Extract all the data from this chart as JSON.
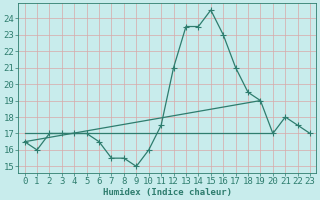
{
  "line1_x": [
    0,
    1,
    2,
    3,
    4,
    5,
    6,
    7,
    8,
    9,
    10,
    11,
    12,
    13,
    14,
    15,
    16,
    17,
    18,
    19,
    20,
    21,
    22,
    23
  ],
  "line1_y": [
    16.5,
    16.0,
    17.0,
    17.0,
    17.0,
    17.0,
    16.5,
    15.5,
    15.5,
    15.0,
    16.0,
    17.5,
    21.0,
    23.5,
    23.5,
    24.5,
    23.0,
    21.0,
    19.5,
    19.0,
    17.0,
    18.0,
    17.5,
    17.0
  ],
  "line2_x": [
    0,
    20
  ],
  "line2_y": [
    17.0,
    17.0
  ],
  "line3_x": [
    0,
    19
  ],
  "line3_y": [
    16.5,
    19.0
  ],
  "color": "#2e7d6e",
  "bg_color": "#c8ecec",
  "grid_color": "#b0d8d8",
  "xlabel": "Humidex (Indice chaleur)",
  "xlim": [
    -0.5,
    23.5
  ],
  "ylim": [
    14.6,
    24.9
  ],
  "yticks": [
    15,
    16,
    17,
    18,
    19,
    20,
    21,
    22,
    23,
    24
  ],
  "xticks": [
    0,
    1,
    2,
    3,
    4,
    5,
    6,
    7,
    8,
    9,
    10,
    11,
    12,
    13,
    14,
    15,
    16,
    17,
    18,
    19,
    20,
    21,
    22,
    23
  ],
  "xtick_labels": [
    "0",
    "1",
    "2",
    "3",
    "4",
    "5",
    "6",
    "7",
    "8",
    "9",
    "10",
    "11",
    "12",
    "13",
    "14",
    "15",
    "16",
    "17",
    "18",
    "19",
    "20",
    "21",
    "22",
    "23"
  ],
  "font_size": 6.5,
  "marker_size": 2.8,
  "line_width": 0.9
}
